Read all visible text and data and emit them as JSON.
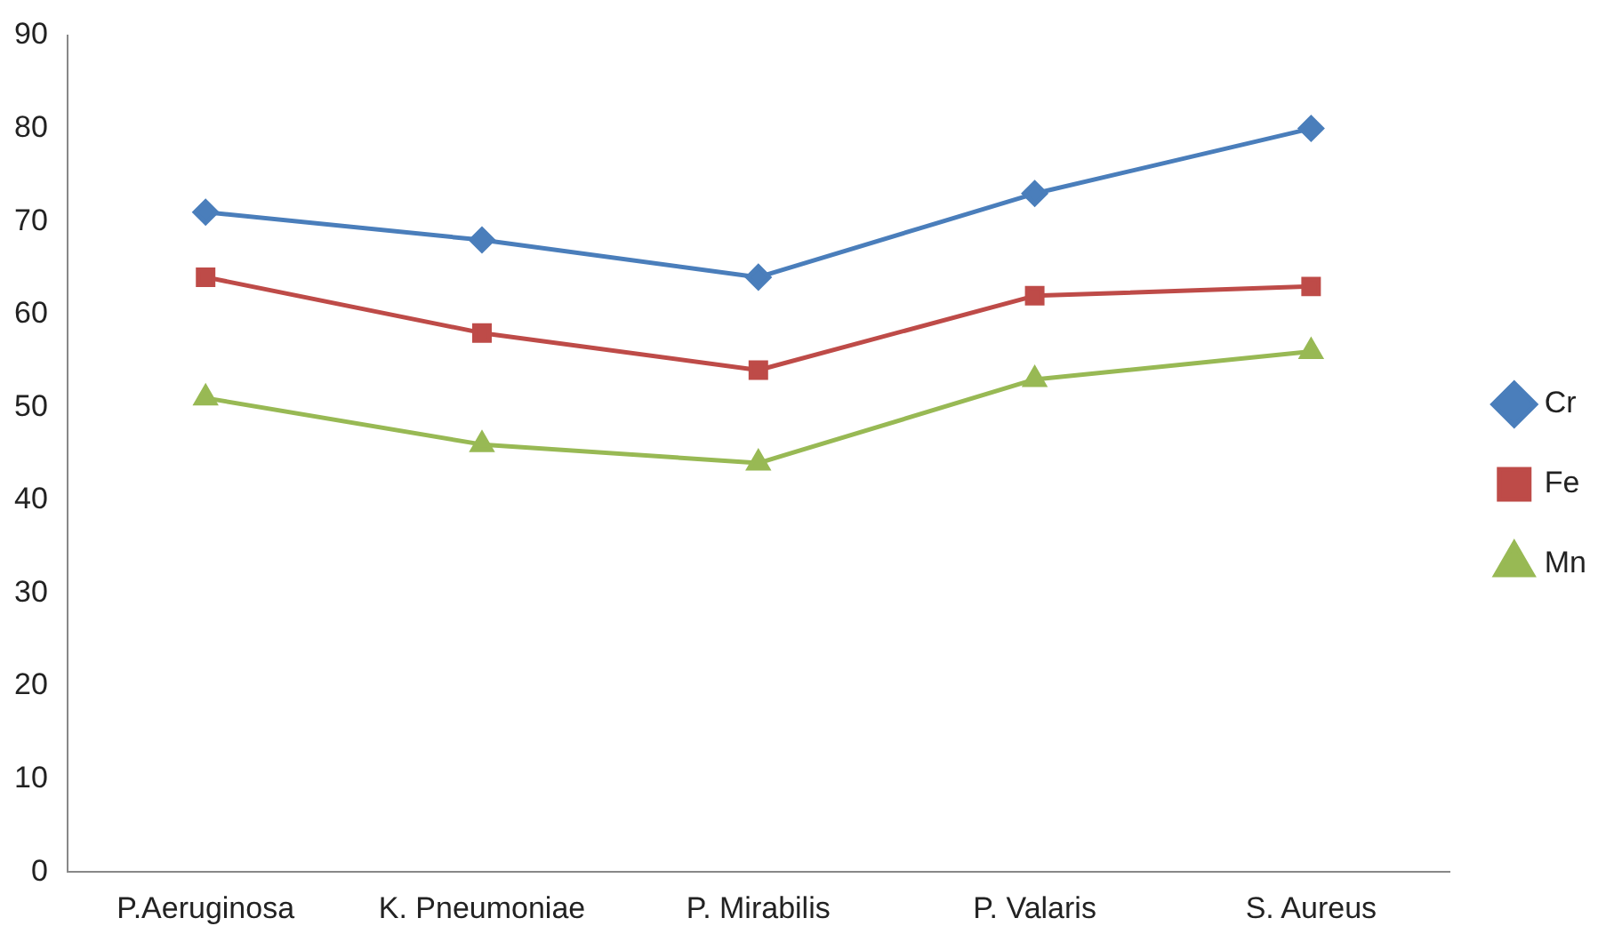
{
  "chart_data": {
    "type": "line",
    "categories": [
      "P.Aeruginosa",
      "K. Pneumoniae",
      "P. Mirabilis",
      "P. Valaris",
      "S. Aureus"
    ],
    "series": [
      {
        "name": "Cr",
        "color": "#4a7ebb",
        "marker": "diamond",
        "values": [
          71,
          68,
          64,
          73,
          80
        ]
      },
      {
        "name": "Fe",
        "color": "#be4b48",
        "marker": "square",
        "values": [
          64,
          58,
          54,
          62,
          63
        ]
      },
      {
        "name": "Mn",
        "color": "#98b954",
        "marker": "triangle",
        "values": [
          51,
          46,
          44,
          53,
          56
        ]
      }
    ],
    "ylim": [
      0,
      90
    ],
    "yticks": [
      0,
      10,
      20,
      30,
      40,
      50,
      60,
      70,
      80,
      90
    ],
    "grid": false,
    "legend": "right",
    "line_style": "solid"
  }
}
